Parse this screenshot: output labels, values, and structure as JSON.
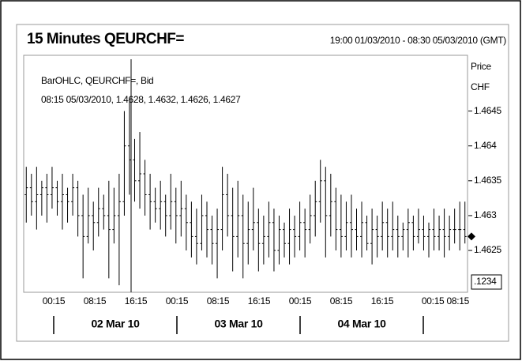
{
  "chart_data": {
    "type": "ohlc",
    "title": "15 Minutes QEURCHF=",
    "subtitle": "19:00 01/03/2010 - 08:30 05/03/2010 (GMT)",
    "annotations": [
      "BarOHLC, QEURCHF=, Bid",
      "08:15 05/03/2010, 1.4628, 1.4632, 1.4626, 1.4627"
    ],
    "y_label": [
      "Price",
      "CHF"
    ],
    "price_format_label": ".1234",
    "xtick_labels": [
      "00:15",
      "08:15",
      "16:15",
      "00:15",
      "08:15",
      "16:15",
      "00:15",
      "08:15",
      "16:15",
      "00:15 08:15"
    ],
    "date_labels": [
      "02 Mar 10",
      "03 Mar 10",
      "04 Mar 10"
    ],
    "ylim": [
      1.4619,
      1.4653
    ],
    "yticks": [
      1.4625,
      1.463,
      1.4635,
      1.464,
      1.4645
    ],
    "color": "#000000",
    "open": [
      1.4633,
      1.4634,
      1.4632,
      1.4633,
      1.4634,
      1.4633,
      1.4634,
      1.4632,
      1.4633,
      1.4632,
      1.4634,
      1.463,
      1.4627,
      1.463,
      1.4629,
      1.4631,
      1.463,
      1.4628,
      1.463,
      1.4632,
      1.464,
      1.4638,
      1.4635,
      1.4636,
      1.4633,
      1.4632,
      1.4631,
      1.4632,
      1.463,
      1.4632,
      1.463,
      1.4631,
      1.4629,
      1.4627,
      1.4626,
      1.463,
      1.4628,
      1.4626,
      1.4628,
      1.4633,
      1.463,
      1.4627,
      1.463,
      1.4626,
      1.4628,
      1.4629,
      1.4626,
      1.4627,
      1.4629,
      1.4625,
      1.4628,
      1.4626,
      1.4628,
      1.4627,
      1.4629,
      1.4628,
      1.463,
      1.4632,
      1.4635,
      1.463,
      1.4632,
      1.4628,
      1.4627,
      1.4629,
      1.4628,
      1.4627,
      1.4629,
      1.4626,
      1.4628,
      1.4627,
      1.4629,
      1.4627,
      1.4628,
      1.4627,
      1.4628,
      1.4629,
      1.4627,
      1.4628,
      1.4627,
      1.4628,
      1.4627,
      1.4628,
      1.4627,
      1.4628,
      1.4628,
      1.4628
    ],
    "high": [
      1.4637,
      1.4636,
      1.4637,
      1.4635,
      1.4636,
      1.4637,
      1.4635,
      1.4636,
      1.4634,
      1.4636,
      1.4635,
      1.4633,
      1.4634,
      1.4632,
      1.4634,
      1.4633,
      1.4635,
      1.4634,
      1.4636,
      1.4645,
      1.4647,
      1.4641,
      1.4642,
      1.4638,
      1.4636,
      1.4634,
      1.4635,
      1.4633,
      1.4636,
      1.4634,
      1.4635,
      1.4633,
      1.4632,
      1.4631,
      1.4633,
      1.4632,
      1.463,
      1.4631,
      1.4637,
      1.4636,
      1.4634,
      1.4635,
      1.4633,
      1.4632,
      1.4634,
      1.4631,
      1.463,
      1.4632,
      1.4631,
      1.463,
      1.4629,
      1.4631,
      1.463,
      1.4632,
      1.4631,
      1.4633,
      1.4635,
      1.4638,
      1.4637,
      1.4636,
      1.4634,
      1.4633,
      1.4632,
      1.4633,
      1.4631,
      1.4632,
      1.463,
      1.4631,
      1.463,
      1.4632,
      1.4631,
      1.4632,
      1.463,
      1.4629,
      1.4631,
      1.463,
      1.4631,
      1.463,
      1.4629,
      1.4631,
      1.463,
      1.4631,
      1.463,
      1.4631,
      1.4632,
      1.4632
    ],
    "low": [
      1.4629,
      1.463,
      1.4628,
      1.463,
      1.4629,
      1.4631,
      1.463,
      1.4628,
      1.4629,
      1.463,
      1.4627,
      1.4621,
      1.4626,
      1.4625,
      1.4627,
      1.4628,
      1.4621,
      1.4626,
      1.462,
      1.463,
      1.4633,
      1.4632,
      1.4631,
      1.463,
      1.4628,
      1.4629,
      1.4628,
      1.4627,
      1.4628,
      1.4626,
      1.4627,
      1.4625,
      1.4624,
      1.4623,
      1.4625,
      1.4624,
      1.4623,
      1.4621,
      1.4625,
      1.4627,
      1.4622,
      1.4624,
      1.4621,
      1.4623,
      1.4625,
      1.4622,
      1.4623,
      1.4624,
      1.4622,
      1.4623,
      1.4624,
      1.4623,
      1.4624,
      1.4625,
      1.4624,
      1.4626,
      1.4627,
      1.4629,
      1.4624,
      1.4627,
      1.4625,
      1.4624,
      1.4625,
      1.4624,
      1.4625,
      1.4624,
      1.4625,
      1.4623,
      1.4624,
      1.4625,
      1.4624,
      1.4625,
      1.4624,
      1.4625,
      1.4624,
      1.4625,
      1.4626,
      1.4625,
      1.4624,
      1.4625,
      1.4625,
      1.4624,
      1.4625,
      1.4626,
      1.4625,
      1.4626
    ],
    "close": [
      1.4634,
      1.4632,
      1.4633,
      1.4634,
      1.4633,
      1.4634,
      1.4632,
      1.4633,
      1.4632,
      1.4634,
      1.463,
      1.4627,
      1.463,
      1.4629,
      1.4631,
      1.463,
      1.4628,
      1.463,
      1.4632,
      1.464,
      1.4638,
      1.4635,
      1.4636,
      1.4633,
      1.4632,
      1.4631,
      1.4632,
      1.463,
      1.4632,
      1.463,
      1.4631,
      1.4629,
      1.4627,
      1.4626,
      1.463,
      1.4628,
      1.4626,
      1.4628,
      1.4633,
      1.463,
      1.4627,
      1.463,
      1.4626,
      1.4628,
      1.4629,
      1.4626,
      1.4627,
      1.4629,
      1.4625,
      1.4628,
      1.4626,
      1.4628,
      1.4627,
      1.4629,
      1.4628,
      1.463,
      1.4632,
      1.4635,
      1.463,
      1.4632,
      1.4628,
      1.4627,
      1.4629,
      1.4628,
      1.4627,
      1.4629,
      1.4626,
      1.4628,
      1.4627,
      1.4629,
      1.4627,
      1.4628,
      1.4627,
      1.4628,
      1.4629,
      1.4627,
      1.4628,
      1.4627,
      1.4628,
      1.4627,
      1.4628,
      1.4627,
      1.4628,
      1.4628,
      1.4628,
      1.4627
    ]
  }
}
